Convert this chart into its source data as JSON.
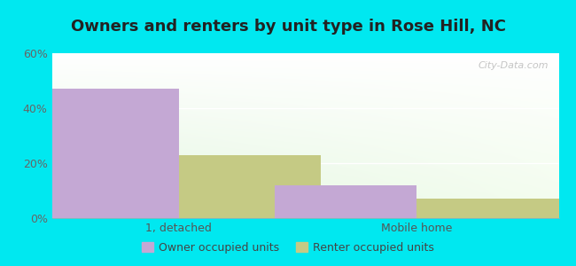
{
  "title": "Owners and renters by unit type in Rose Hill, NC",
  "categories": [
    "1, detached",
    "Mobile home"
  ],
  "owner_values": [
    47,
    12
  ],
  "renter_values": [
    23,
    7
  ],
  "owner_color": "#c4a8d4",
  "renter_color": "#c5ca84",
  "ylim": [
    0,
    60
  ],
  "yticks": [
    0,
    20,
    40,
    60
  ],
  "ytick_labels": [
    "0%",
    "20%",
    "40%",
    "60%"
  ],
  "legend_owner": "Owner occupied units",
  "legend_renter": "Renter occupied units",
  "bg_outer": "#00e8f0",
  "title_fontsize": 13,
  "tick_fontsize": 9,
  "legend_fontsize": 9,
  "bar_width": 0.28,
  "title_color": "#222222"
}
